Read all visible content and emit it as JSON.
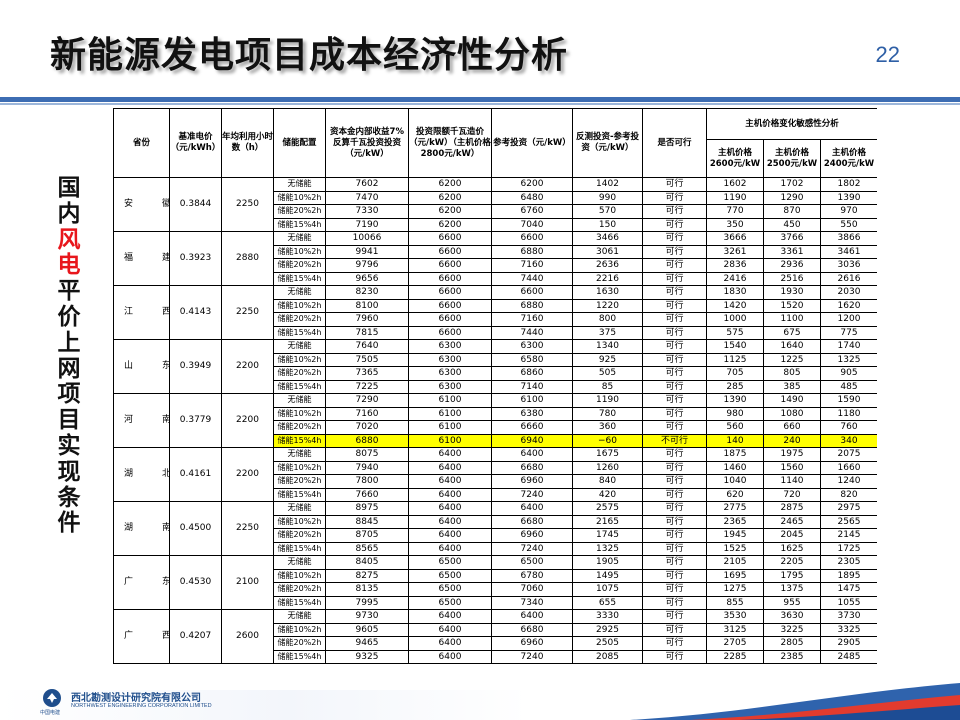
{
  "header": {
    "title": "新能源发电项目成本经济性分析",
    "page_number": "22"
  },
  "side_title": {
    "chars": [
      {
        "c": "国",
        "hl": false
      },
      {
        "c": "内",
        "hl": false
      },
      {
        "c": "风",
        "hl": true
      },
      {
        "c": "电",
        "hl": true
      },
      {
        "c": "平",
        "hl": false
      },
      {
        "c": "价",
        "hl": false
      },
      {
        "c": "上",
        "hl": false
      },
      {
        "c": "网",
        "hl": false
      },
      {
        "c": "项",
        "hl": false
      },
      {
        "c": "目",
        "hl": false
      },
      {
        "c": "实",
        "hl": false
      },
      {
        "c": "现",
        "hl": false
      },
      {
        "c": "条",
        "hl": false
      },
      {
        "c": "件",
        "hl": false
      }
    ]
  },
  "table": {
    "headers": {
      "province": "省份",
      "benchmark_price": "基准电价（元/kWh）",
      "annual_hours": "年均利用小时数（h）",
      "storage_config": "储能配置",
      "cost_limit": "资本金内部收益7%反算千瓦投资投资（元/kW）",
      "investment_limit": "投资限额千瓦造价（元/kW）（主机价格2800元/kW）",
      "reference_investment": "参考投资（元/kW）",
      "back_calc": "反测投资-参考投资（元/kW）",
      "feasible": "是否可行",
      "sensitivity": "主机价格变化敏感性分析",
      "sens_2600": "主机价格2600元/kW",
      "sens_2500": "主机价格2500元/kW",
      "sens_2400": "主机价格2400元/kW"
    },
    "groups": [
      {
        "province": "安　徽",
        "price": "0.3844",
        "hours": "2250",
        "rows": [
          [
            "无储能",
            "7602",
            "6200",
            "6200",
            "1402",
            "可行",
            "1602",
            "1702",
            "1802"
          ],
          [
            "储能10%2h",
            "7470",
            "6200",
            "6480",
            "990",
            "可行",
            "1190",
            "1290",
            "1390"
          ],
          [
            "储能20%2h",
            "7330",
            "6200",
            "6760",
            "570",
            "可行",
            "770",
            "870",
            "970"
          ],
          [
            "储能15%4h",
            "7190",
            "6200",
            "7040",
            "150",
            "可行",
            "350",
            "450",
            "550"
          ]
        ]
      },
      {
        "province": "福　建",
        "price": "0.3923",
        "hours": "2880",
        "rows": [
          [
            "无储能",
            "10066",
            "6600",
            "6600",
            "3466",
            "可行",
            "3666",
            "3766",
            "3866"
          ],
          [
            "储能10%2h",
            "9941",
            "6600",
            "6880",
            "3061",
            "可行",
            "3261",
            "3361",
            "3461"
          ],
          [
            "储能20%2h",
            "9796",
            "6600",
            "7160",
            "2636",
            "可行",
            "2836",
            "2936",
            "3036"
          ],
          [
            "储能15%4h",
            "9656",
            "6600",
            "7440",
            "2216",
            "可行",
            "2416",
            "2516",
            "2616"
          ]
        ]
      },
      {
        "province": "江　西",
        "price": "0.4143",
        "hours": "2250",
        "rows": [
          [
            "无储能",
            "8230",
            "6600",
            "6600",
            "1630",
            "可行",
            "1830",
            "1930",
            "2030"
          ],
          [
            "储能10%2h",
            "8100",
            "6600",
            "6880",
            "1220",
            "可行",
            "1420",
            "1520",
            "1620"
          ],
          [
            "储能20%2h",
            "7960",
            "6600",
            "7160",
            "800",
            "可行",
            "1000",
            "1100",
            "1200"
          ],
          [
            "储能15%4h",
            "7815",
            "6600",
            "7440",
            "375",
            "可行",
            "575",
            "675",
            "775"
          ]
        ]
      },
      {
        "province": "山　东",
        "price": "0.3949",
        "hours": "2200",
        "rows": [
          [
            "无储能",
            "7640",
            "6300",
            "6300",
            "1340",
            "可行",
            "1540",
            "1640",
            "1740"
          ],
          [
            "储能10%2h",
            "7505",
            "6300",
            "6580",
            "925",
            "可行",
            "1125",
            "1225",
            "1325"
          ],
          [
            "储能20%2h",
            "7365",
            "6300",
            "6860",
            "505",
            "可行",
            "705",
            "805",
            "905"
          ],
          [
            "储能15%4h",
            "7225",
            "6300",
            "7140",
            "85",
            "可行",
            "285",
            "385",
            "485"
          ]
        ]
      },
      {
        "province": "河　南",
        "price": "0.3779",
        "hours": "2200",
        "rows": [
          [
            "无储能",
            "7290",
            "6100",
            "6100",
            "1190",
            "可行",
            "1390",
            "1490",
            "1590"
          ],
          [
            "储能10%2h",
            "7160",
            "6100",
            "6380",
            "780",
            "可行",
            "980",
            "1080",
            "1180"
          ],
          [
            "储能20%2h",
            "7020",
            "6100",
            "6660",
            "360",
            "可行",
            "560",
            "660",
            "760"
          ],
          [
            "储能15%4h",
            "6880",
            "6100",
            "6940",
            "−60",
            "不可行",
            "140",
            "240",
            "340"
          ]
        ]
      },
      {
        "province": "湖　北",
        "price": "0.4161",
        "hours": "2200",
        "rows": [
          [
            "无储能",
            "8075",
            "6400",
            "6400",
            "1675",
            "可行",
            "1875",
            "1975",
            "2075"
          ],
          [
            "储能10%2h",
            "7940",
            "6400",
            "6680",
            "1260",
            "可行",
            "1460",
            "1560",
            "1660"
          ],
          [
            "储能20%2h",
            "7800",
            "6400",
            "6960",
            "840",
            "可行",
            "1040",
            "1140",
            "1240"
          ],
          [
            "储能15%4h",
            "7660",
            "6400",
            "7240",
            "420",
            "可行",
            "620",
            "720",
            "820"
          ]
        ]
      },
      {
        "province": "湖　南",
        "price": "0.4500",
        "hours": "2250",
        "rows": [
          [
            "无储能",
            "8975",
            "6400",
            "6400",
            "2575",
            "可行",
            "2775",
            "2875",
            "2975"
          ],
          [
            "储能10%2h",
            "8845",
            "6400",
            "6680",
            "2165",
            "可行",
            "2365",
            "2465",
            "2565"
          ],
          [
            "储能20%2h",
            "8705",
            "6400",
            "6960",
            "1745",
            "可行",
            "1945",
            "2045",
            "2145"
          ],
          [
            "储能15%4h",
            "8565",
            "6400",
            "7240",
            "1325",
            "可行",
            "1525",
            "1625",
            "1725"
          ]
        ]
      },
      {
        "province": "广　东",
        "price": "0.4530",
        "hours": "2100",
        "rows": [
          [
            "无储能",
            "8405",
            "6500",
            "6500",
            "1905",
            "可行",
            "2105",
            "2205",
            "2305"
          ],
          [
            "储能10%2h",
            "8275",
            "6500",
            "6780",
            "1495",
            "可行",
            "1695",
            "1795",
            "1895"
          ],
          [
            "储能20%2h",
            "8135",
            "6500",
            "7060",
            "1075",
            "可行",
            "1275",
            "1375",
            "1475"
          ],
          [
            "储能15%4h",
            "7995",
            "6500",
            "7340",
            "655",
            "可行",
            "855",
            "955",
            "1055"
          ]
        ]
      },
      {
        "province": "广　西",
        "price": "0.4207",
        "hours": "2600",
        "rows": [
          [
            "无储能",
            "9730",
            "6400",
            "6400",
            "3330",
            "可行",
            "3530",
            "3630",
            "3730"
          ],
          [
            "储能10%2h",
            "9605",
            "6400",
            "6680",
            "2925",
            "可行",
            "3125",
            "3225",
            "3325"
          ],
          [
            "储能20%2h",
            "9465",
            "6400",
            "6960",
            "2505",
            "可行",
            "2705",
            "2805",
            "2905"
          ],
          [
            "储能15%4h",
            "9325",
            "6400",
            "7240",
            "2085",
            "可行",
            "2285",
            "2385",
            "2485"
          ]
        ]
      }
    ],
    "highlight": {
      "group": 4,
      "row": 3,
      "color": "#ffff00"
    }
  },
  "footer": {
    "logo_icon": "power-china-logo-icon",
    "logo_sub": "中国电建",
    "org_cn": "西北勘测设计研究院有限公司",
    "org_en": "NORTHWEST ENGINEERING CORPORATION LIMITED"
  },
  "colors": {
    "accent": "#3d6db3",
    "highlight": "#ffff00",
    "side_highlight": "#e8161c",
    "page_number": "#2e5fa6"
  }
}
